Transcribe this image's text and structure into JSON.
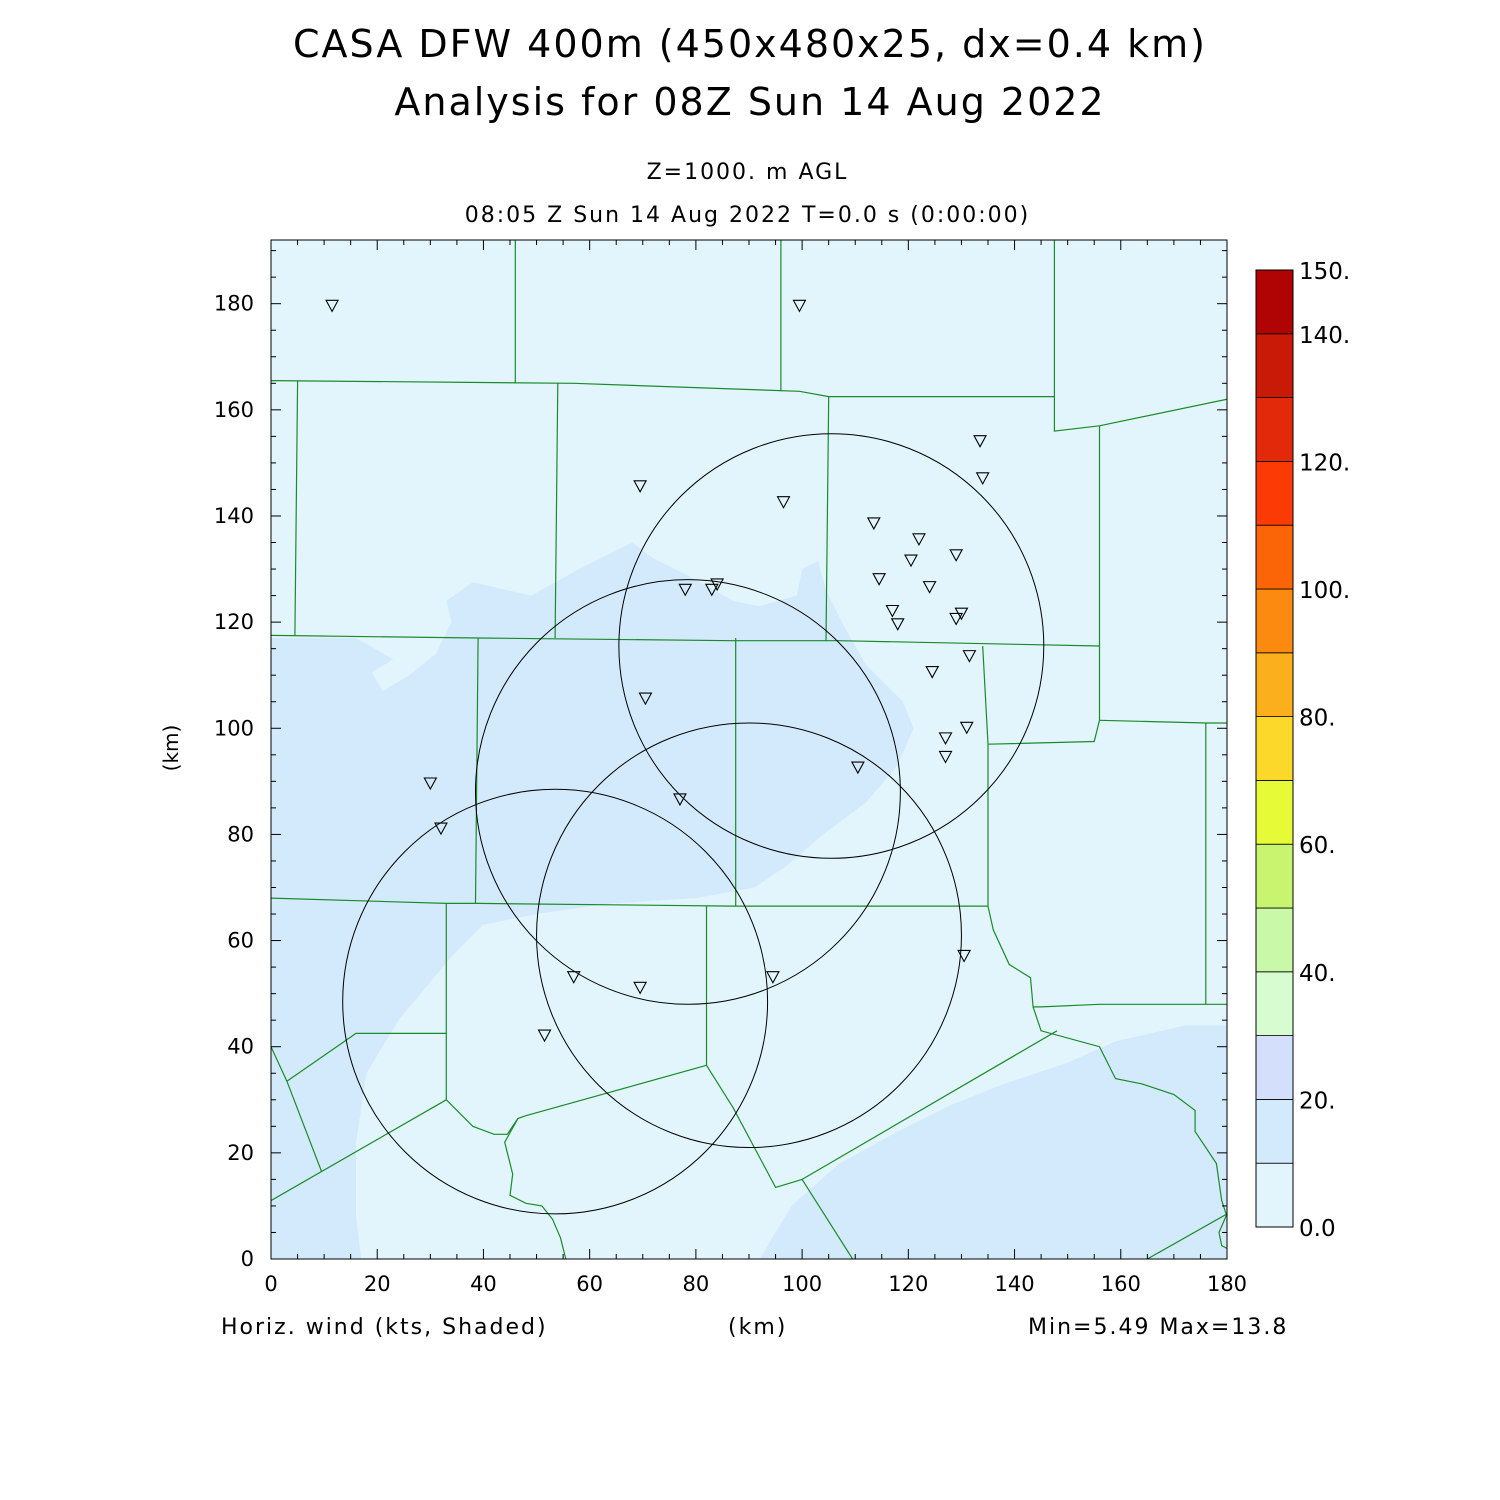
{
  "header": {
    "title_line1": "CASA DFW 400m (450x480x25, dx=0.4 km)",
    "title_line2": "Analysis for 08Z Sun 14 Aug 2022",
    "level": "Z=1000. m AGL",
    "time": "08:05 Z Sun 14 Aug 2022    T=0.0 s (0:00:00)"
  },
  "footer": {
    "variable": "Horiz. wind (kts, Shaded)",
    "x_unit": "(km)",
    "minmax": "Min=5.49  Max=13.8"
  },
  "axes": {
    "x_ticks": [
      0,
      20,
      40,
      60,
      80,
      100,
      120,
      140,
      160,
      180
    ],
    "y_ticks": [
      0,
      20,
      40,
      60,
      80,
      100,
      120,
      140,
      160,
      180
    ],
    "x_label": "(km)",
    "y_label": "(km)",
    "xlim": [
      0,
      180
    ],
    "ylim": [
      0,
      192
    ]
  },
  "colorbar": {
    "labels": [
      "0.0",
      "20.",
      "40.",
      "60.",
      "80.",
      "100.",
      "120.",
      "140.",
      "150."
    ],
    "label_values": [
      0,
      20,
      40,
      60,
      80,
      100,
      120,
      140,
      150
    ],
    "range": [
      0,
      150
    ],
    "bins": [
      {
        "lo": 0,
        "hi": 10,
        "color": "#e2f5fc"
      },
      {
        "lo": 10,
        "hi": 20,
        "color": "#d3eafc"
      },
      {
        "lo": 20,
        "hi": 30,
        "color": "#d4dffc"
      },
      {
        "lo": 30,
        "hi": 40,
        "color": "#d6fcd0"
      },
      {
        "lo": 40,
        "hi": 50,
        "color": "#c8f8a8"
      },
      {
        "lo": 50,
        "hi": 60,
        "color": "#c8f470"
      },
      {
        "lo": 60,
        "hi": 70,
        "color": "#e6fa38"
      },
      {
        "lo": 70,
        "hi": 80,
        "color": "#fcd82a"
      },
      {
        "lo": 80,
        "hi": 90,
        "color": "#fcaf1c"
      },
      {
        "lo": 90,
        "hi": 100,
        "color": "#fc8a10"
      },
      {
        "lo": 100,
        "hi": 110,
        "color": "#fc6408"
      },
      {
        "lo": 110,
        "hi": 120,
        "color": "#fc3a06"
      },
      {
        "lo": 120,
        "hi": 130,
        "color": "#e22a0a"
      },
      {
        "lo": 130,
        "hi": 140,
        "color": "#c81a06"
      },
      {
        "lo": 140,
        "hi": 150,
        "color": "#b00404"
      }
    ]
  },
  "chart_data": {
    "type": "map",
    "field": "Horiz. wind (kts, Shaded)",
    "min": 5.49,
    "max": 13.8,
    "radar_rings": [
      {
        "center": [
          105.5,
          115.5
        ],
        "radius": 40
      },
      {
        "center": [
          78.5,
          88
        ],
        "radius": 40
      },
      {
        "center": [
          90,
          61
        ],
        "radius": 40
      },
      {
        "center": [
          53.5,
          48.5
        ],
        "radius": 40
      }
    ],
    "stations": [
      [
        11.5,
        179.5
      ],
      [
        99.5,
        179.5
      ],
      [
        69.5,
        145.5
      ],
      [
        96.5,
        142.5
      ],
      [
        113.5,
        138.5
      ],
      [
        133.5,
        154
      ],
      [
        134,
        147
      ],
      [
        122,
        135.5
      ],
      [
        120.5,
        131.5
      ],
      [
        129,
        132.5
      ],
      [
        114.5,
        128
      ],
      [
        124,
        126.5
      ],
      [
        78,
        126
      ],
      [
        83,
        126
      ],
      [
        84,
        127
      ],
      [
        117,
        122
      ],
      [
        118,
        119.5
      ],
      [
        130,
        121.5
      ],
      [
        129,
        120.5
      ],
      [
        131.5,
        113.5
      ],
      [
        124.5,
        110.5
      ],
      [
        70.5,
        105.5
      ],
      [
        131,
        100
      ],
      [
        127,
        98
      ],
      [
        127,
        94.5
      ],
      [
        110.5,
        92.5
      ],
      [
        30,
        89.5
      ],
      [
        32,
        81
      ],
      [
        77,
        86.5
      ],
      [
        130.5,
        57
      ],
      [
        57,
        53
      ],
      [
        69.5,
        51
      ],
      [
        94.5,
        53
      ],
      [
        51.5,
        42
      ]
    ],
    "county_lines": [
      [
        [
          0,
          165.5
        ],
        [
          57,
          165
        ],
        [
          99.5,
          163.5
        ],
        [
          105,
          162.5
        ],
        [
          147.5,
          162.5
        ]
      ],
      [
        [
          0,
          117.5
        ],
        [
          39,
          117
        ],
        [
          87,
          116.5
        ],
        [
          107,
          116.5
        ],
        [
          156,
          115.5
        ]
      ],
      [
        [
          0,
          68
        ],
        [
          33,
          67
        ],
        [
          39,
          67
        ],
        [
          87,
          66.5
        ],
        [
          135,
          66.5
        ]
      ],
      [
        [
          46,
          192
        ],
        [
          46,
          165
        ]
      ],
      [
        [
          96,
          192
        ],
        [
          96,
          163.5
        ]
      ],
      [
        [
          147.5,
          192
        ],
        [
          147.5,
          162.5
        ]
      ],
      [
        [
          147.5,
          162.5
        ],
        [
          147.5,
          156
        ],
        [
          156,
          157
        ],
        [
          180,
          162
        ]
      ],
      [
        [
          5,
          165.5
        ],
        [
          4.5,
          117.5
        ]
      ],
      [
        [
          54,
          165
        ],
        [
          53.5,
          117
        ]
      ],
      [
        [
          105,
          162.5
        ],
        [
          104.5,
          116.5
        ]
      ],
      [
        [
          156,
          157
        ],
        [
          156,
          115.5
        ],
        [
          156,
          101.5
        ],
        [
          155,
          97.5
        ],
        [
          135,
          97
        ]
      ],
      [
        [
          156,
          101.5
        ],
        [
          176,
          101
        ],
        [
          180,
          101
        ]
      ],
      [
        [
          39,
          117
        ],
        [
          38.5,
          67
        ]
      ],
      [
        [
          87.5,
          117
        ],
        [
          87.5,
          66.5
        ]
      ],
      [
        [
          134,
          115.5
        ],
        [
          135,
          97
        ],
        [
          135,
          66.5
        ]
      ],
      [
        [
          33,
          67
        ],
        [
          33,
          42.5
        ],
        [
          16,
          42.5
        ],
        [
          3,
          33.5
        ],
        [
          0,
          40
        ]
      ],
      [
        [
          33,
          42.5
        ],
        [
          33,
          30
        ],
        [
          38,
          25
        ],
        [
          42,
          23.5
        ],
        [
          44.5,
          23.5
        ],
        [
          46.5,
          26.5
        ],
        [
          48,
          27
        ]
      ],
      [
        [
          48,
          27
        ],
        [
          82,
          36.5
        ],
        [
          82,
          66.5
        ]
      ],
      [
        [
          82,
          36.5
        ],
        [
          87,
          28.5
        ],
        [
          95,
          13.5
        ],
        [
          100,
          15
        ]
      ],
      [
        [
          0,
          11
        ],
        [
          33,
          30
        ]
      ],
      [
        [
          3,
          33.5
        ],
        [
          9.5,
          16.5
        ]
      ],
      [
        [
          46.5,
          26.5
        ],
        [
          44,
          22
        ],
        [
          45.5,
          16
        ],
        [
          45,
          12
        ],
        [
          48,
          10.5
        ],
        [
          51,
          10
        ],
        [
          53,
          7.5
        ],
        [
          54.5,
          4
        ],
        [
          55.5,
          0
        ]
      ],
      [
        [
          100,
          15
        ],
        [
          148,
          43
        ]
      ],
      [
        [
          100,
          15
        ],
        [
          109.5,
          0
        ]
      ],
      [
        [
          135,
          66.5
        ],
        [
          136,
          62
        ],
        [
          139,
          55.5
        ],
        [
          143,
          53
        ],
        [
          143.5,
          47.5
        ],
        [
          145,
          47.5
        ],
        [
          156,
          48
        ],
        [
          176,
          48
        ],
        [
          180,
          48
        ]
      ],
      [
        [
          143.5,
          47.5
        ],
        [
          145,
          43
        ],
        [
          156,
          40
        ],
        [
          159,
          34
        ],
        [
          164,
          33
        ],
        [
          170,
          31
        ],
        [
          174,
          28
        ],
        [
          174,
          24
        ],
        [
          176,
          21
        ],
        [
          178,
          18
        ],
        [
          179,
          11
        ],
        [
          180,
          8
        ]
      ],
      [
        [
          176,
          101
        ],
        [
          176,
          48
        ]
      ],
      [
        [
          180,
          8.5
        ],
        [
          165,
          0
        ]
      ],
      [
        [
          180,
          8.5
        ],
        [
          178.5,
          5
        ],
        [
          179,
          2.5
        ],
        [
          180,
          2
        ]
      ]
    ],
    "shading": [
      {
        "value": ">10",
        "polygon": [
          [
            0,
            117
          ],
          [
            16,
            117
          ],
          [
            23,
            113
          ],
          [
            19,
            110.5
          ],
          [
            21,
            107
          ],
          [
            26,
            110
          ],
          [
            31,
            114
          ],
          [
            34,
            120
          ],
          [
            33,
            124
          ],
          [
            38,
            127.5
          ],
          [
            49,
            125
          ],
          [
            58,
            130
          ],
          [
            68,
            135
          ],
          [
            72,
            132
          ],
          [
            79,
            128.5
          ],
          [
            87,
            124
          ],
          [
            92,
            123
          ],
          [
            99,
            125
          ],
          [
            100,
            130
          ],
          [
            103,
            131.5
          ],
          [
            104.5,
            126
          ],
          [
            108,
            119
          ],
          [
            112,
            112
          ],
          [
            119,
            105
          ],
          [
            121,
            100
          ],
          [
            118,
            93
          ],
          [
            112,
            86
          ],
          [
            104,
            80
          ],
          [
            97,
            74
          ],
          [
            91,
            70
          ],
          [
            80,
            68
          ],
          [
            64,
            67
          ],
          [
            50,
            65
          ],
          [
            40,
            63
          ],
          [
            34,
            57
          ],
          [
            24,
            45
          ],
          [
            18,
            35
          ],
          [
            16,
            22
          ],
          [
            16,
            8
          ],
          [
            17,
            0
          ],
          [
            0,
            0
          ]
        ]
      },
      {
        "value": ">10",
        "polygon": [
          [
            180,
            0
          ],
          [
            180,
            44
          ],
          [
            172,
            44
          ],
          [
            159,
            41
          ],
          [
            150,
            37
          ],
          [
            138,
            33
          ],
          [
            128,
            29
          ],
          [
            118,
            24
          ],
          [
            107,
            18
          ],
          [
            98,
            10
          ],
          [
            92,
            0
          ]
        ]
      }
    ]
  }
}
